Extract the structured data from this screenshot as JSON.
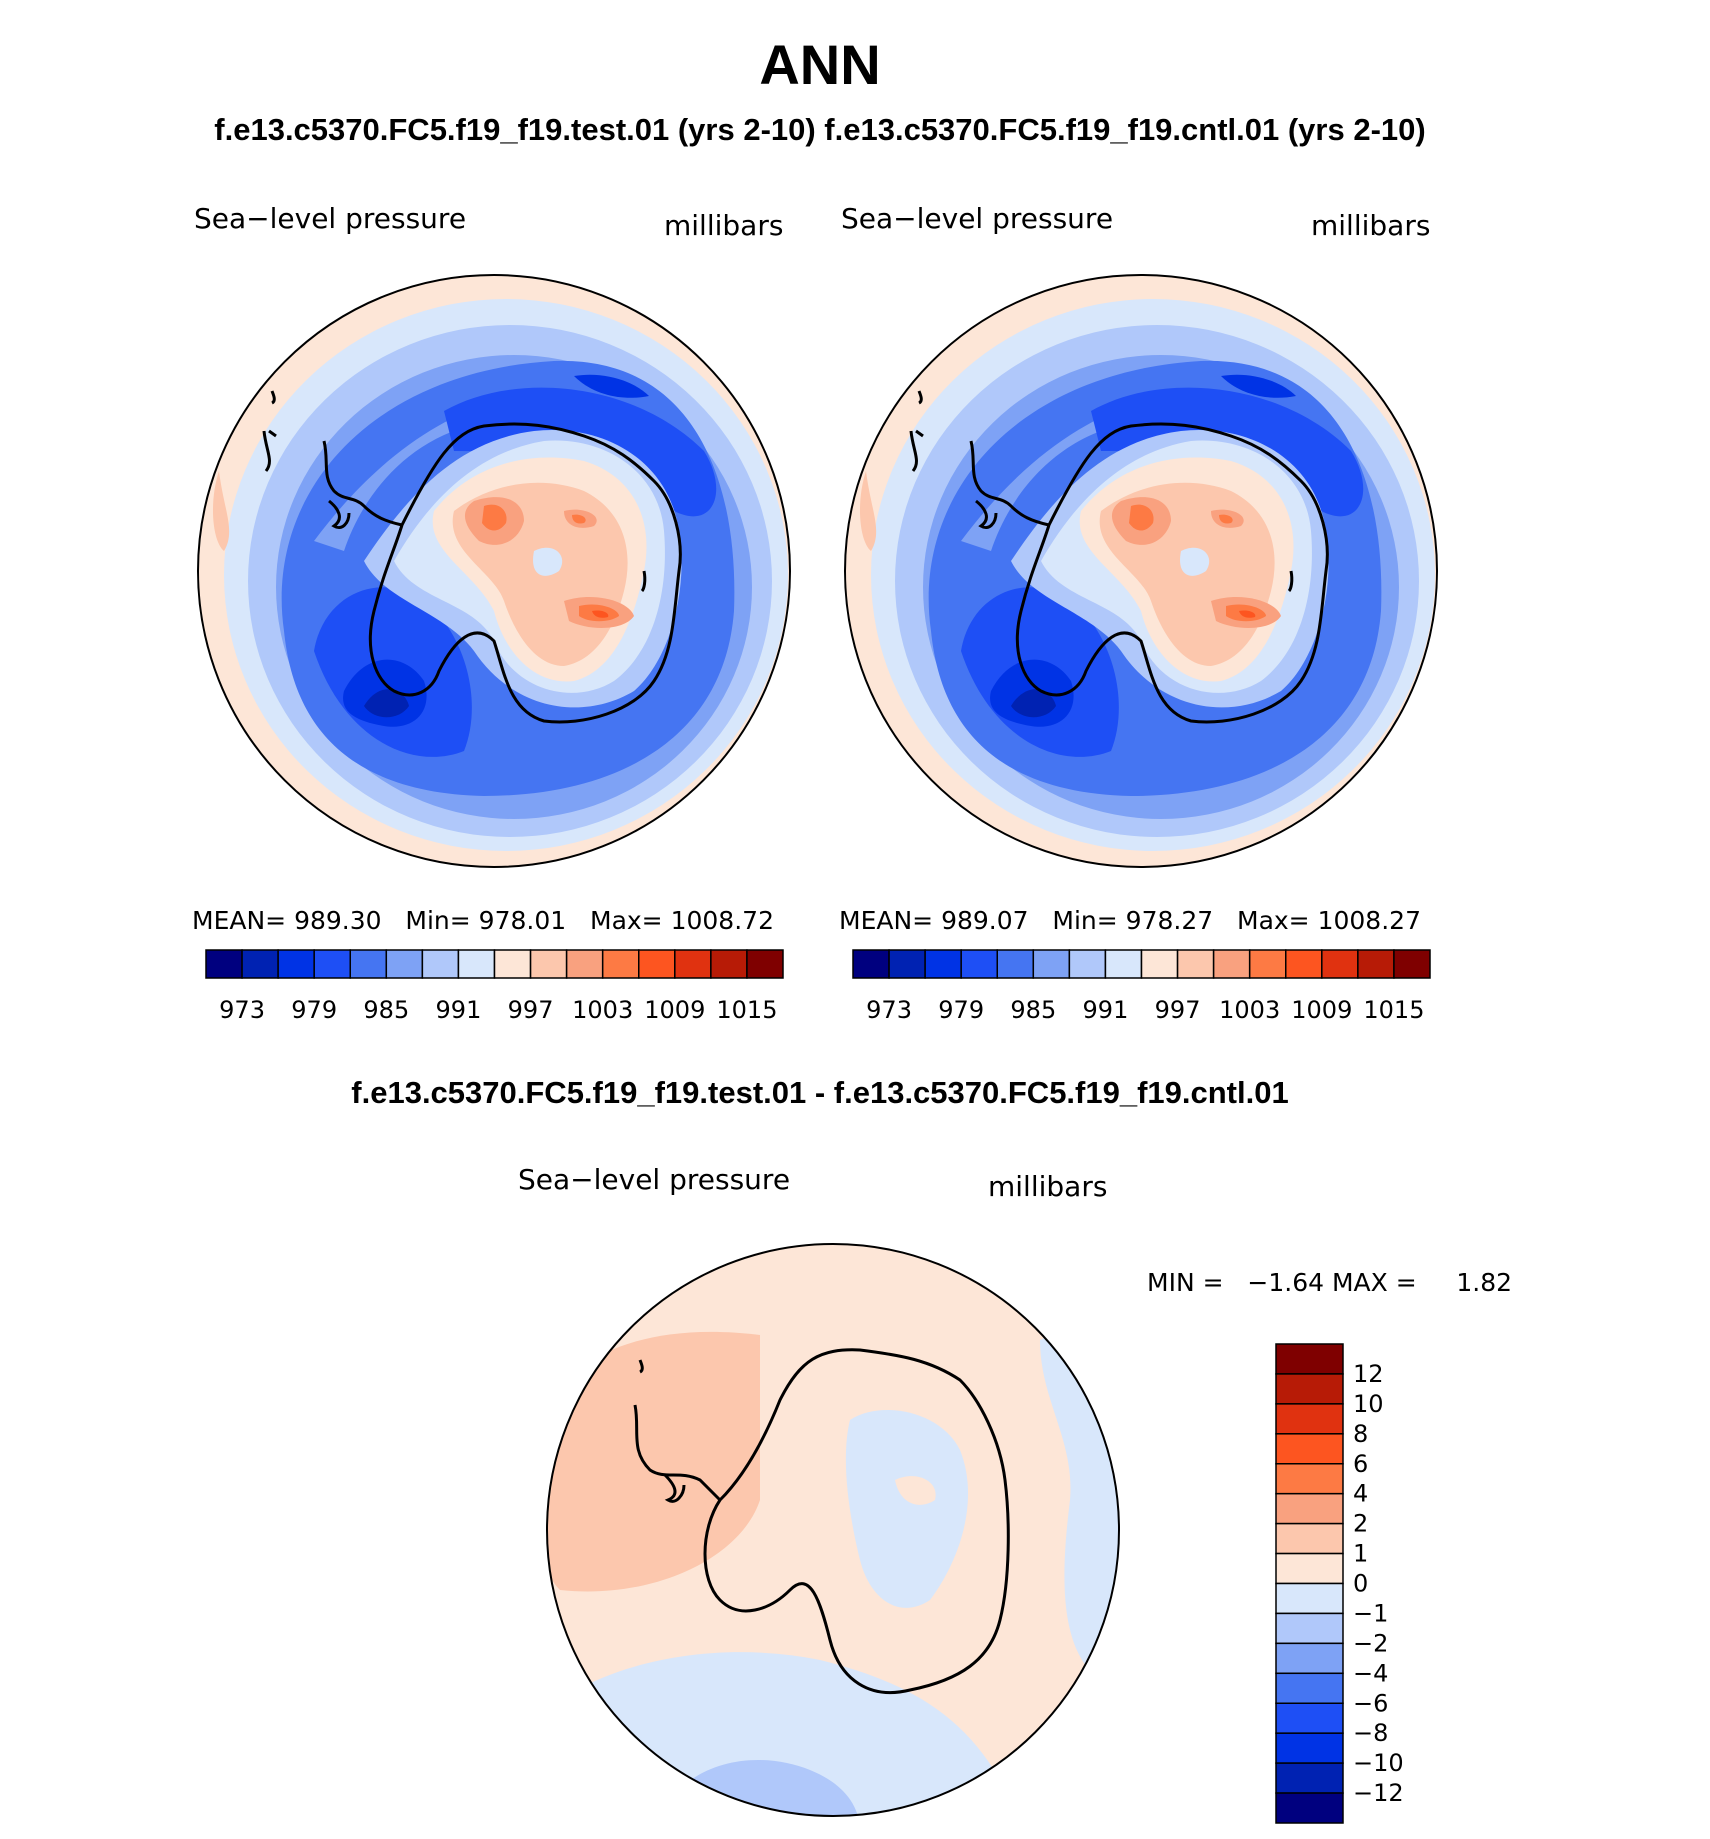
{
  "title": "ANN",
  "subtitle_top": "f.e13.c5370.FC5.f19_f19.test.01 (yrs 2-10) f.e13.c5370.FC5.f19_f19.cntl.01 (yrs 2-10)",
  "subtitle_diff": "f.e13.c5370.FC5.f19_f19.test.01 - f.e13.c5370.FC5.f19_f19.cntl.01",
  "colors": {
    "abs_levels": [
      "#00007f",
      "#0022b2",
      "#0033e5",
      "#1e4ff5",
      "#4575f2",
      "#7ea2f5",
      "#b0c8fa",
      "#d8e7fb",
      "#fde6d7",
      "#fcc7ad",
      "#f9a17f",
      "#fd7a44",
      "#fd5520",
      "#e03210",
      "#b71b06",
      "#7f0000"
    ],
    "diff_levels": [
      "#7f0000",
      "#b71b06",
      "#e03210",
      "#fd5520",
      "#fd7a44",
      "#f9a17f",
      "#fcc7ad",
      "#fde6d7",
      "#d8e7fb",
      "#b0c8fa",
      "#7ea2f5",
      "#4575f2",
      "#1e4ff5",
      "#0033e5",
      "#0022b2",
      "#00007f"
    ]
  },
  "panels": [
    {
      "variable": "Sea−level pressure",
      "units": "millibars",
      "stats": {
        "mean_label": "MEAN=",
        "mean": "989.30",
        "min_label": "Min=",
        "min": "978.01",
        "max_label": "Max=",
        "max": "1008.72"
      },
      "colorbar_ticks": [
        "973",
        "979",
        "985",
        "991",
        "997",
        "1003",
        "1009",
        "1015"
      ]
    },
    {
      "variable": "Sea−level pressure",
      "units": "millibars",
      "stats": {
        "mean_label": "MEAN=",
        "mean": "989.07",
        "min_label": "Min=",
        "min": "978.27",
        "max_label": "Max=",
        "max": "1008.27"
      },
      "colorbar_ticks": [
        "973",
        "979",
        "985",
        "991",
        "997",
        "1003",
        "1009",
        "1015"
      ]
    }
  ],
  "diff_panel": {
    "variable": "Sea−level pressure",
    "units": "millibars",
    "min_label": "MIN =",
    "min": "−1.64",
    "max_label": "MAX =",
    "max": "1.82",
    "colorbar_ticks": [
      "12",
      "10",
      "8",
      "6",
      "4",
      "2",
      "1",
      "0",
      "−1",
      "−2",
      "−4",
      "−6",
      "−8",
      "−10",
      "−12"
    ]
  }
}
